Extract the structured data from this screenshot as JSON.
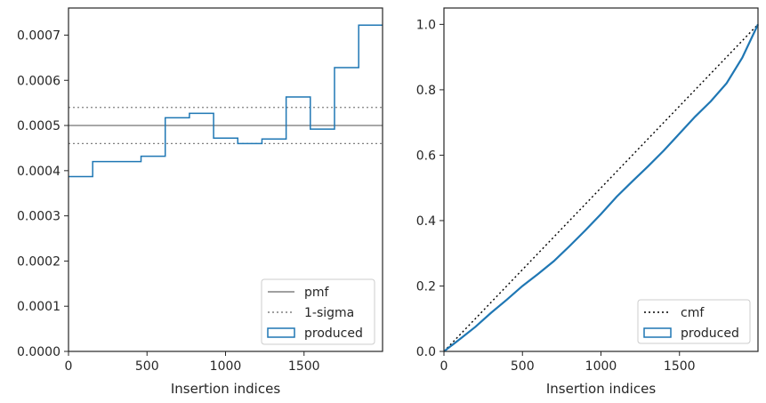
{
  "chart_data": [
    {
      "type": "step",
      "xlabel": "Insertion indices",
      "ylabel": "",
      "xlim": [
        0,
        2000
      ],
      "ylim": [
        0,
        0.00076
      ],
      "xticks": [
        0,
        500,
        1000,
        1500
      ],
      "xtick_labels": [
        "0",
        "500",
        "1000",
        "1500"
      ],
      "yticks": [
        0,
        0.0001,
        0.0002,
        0.0003,
        0.0004,
        0.0005,
        0.0006,
        0.0007
      ],
      "ytick_labels": [
        "0.0000",
        "0.0001",
        "0.0002",
        "0.0003",
        "0.0004",
        "0.0005",
        "0.0006",
        "0.0007"
      ],
      "grid": false,
      "legend_position": "bottom-right",
      "series": [
        {
          "name": "pmf",
          "kind": "hline",
          "value": 0.0005,
          "color": "#808080",
          "style": "solid"
        },
        {
          "name": "1-sigma",
          "kind": "hlines",
          "values": [
            0.00054,
            0.00046
          ],
          "color": "#808080",
          "style": "dotted"
        },
        {
          "name": "produced",
          "kind": "step",
          "color": "#1f77b4",
          "bin_edges": [
            0,
            154,
            308,
            462,
            616,
            770,
            924,
            1078,
            1232,
            1386,
            1540,
            1694,
            1848,
            2000
          ],
          "values": [
            0.000387,
            0.00042,
            0.00042,
            0.000432,
            0.000517,
            0.000527,
            0.000472,
            0.00046,
            0.00047,
            0.000563,
            0.000492,
            0.000628,
            0.000722
          ]
        }
      ]
    },
    {
      "type": "line",
      "xlabel": "Insertion indices",
      "ylabel": "",
      "xlim": [
        0,
        2000
      ],
      "ylim": [
        0,
        1.05
      ],
      "xticks": [
        0,
        500,
        1000,
        1500
      ],
      "xtick_labels": [
        "0",
        "500",
        "1000",
        "1500"
      ],
      "yticks": [
        0,
        0.2,
        0.4,
        0.6,
        0.8,
        1.0
      ],
      "ytick_labels": [
        "0.0",
        "0.2",
        "0.4",
        "0.6",
        "0.8",
        "1.0"
      ],
      "grid": false,
      "legend_position": "bottom-right",
      "series": [
        {
          "name": "cmf",
          "color": "#000000",
          "style": "dotted",
          "x": [
            0,
            2000
          ],
          "y": [
            0,
            1.0
          ]
        },
        {
          "name": "produced",
          "color": "#1f77b4",
          "style": "solid",
          "x": [
            0,
            100,
            200,
            300,
            400,
            500,
            600,
            700,
            800,
            900,
            1000,
            1100,
            1200,
            1300,
            1400,
            1500,
            1600,
            1700,
            1800,
            1900,
            2000
          ],
          "y": [
            0,
            0.037,
            0.075,
            0.118,
            0.158,
            0.2,
            0.237,
            0.276,
            0.322,
            0.37,
            0.42,
            0.473,
            0.52,
            0.566,
            0.614,
            0.666,
            0.718,
            0.765,
            0.82,
            0.898,
            1.0
          ]
        }
      ]
    }
  ]
}
